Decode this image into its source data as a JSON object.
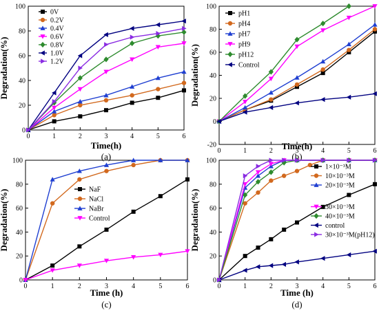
{
  "chart_data": [
    {
      "type": "line",
      "panel_label": "(a)",
      "xlabel": "Time(h)",
      "ylabel": "Degradation(%)",
      "xlim": [
        0,
        6
      ],
      "ylim": [
        0,
        100
      ],
      "xticks": [
        0,
        1,
        2,
        3,
        4,
        5,
        6
      ],
      "yticks": [
        0,
        20,
        40,
        60,
        80,
        100
      ],
      "legend_position": "top-left",
      "series": [
        {
          "name": "0V",
          "marker": "square",
          "color": "#000000",
          "x": [
            0,
            1,
            2,
            3,
            4,
            5,
            6
          ],
          "values": [
            0,
            7,
            11,
            16,
            22,
            26,
            32
          ]
        },
        {
          "name": "0.2V",
          "marker": "circle",
          "color": "#d2691e",
          "x": [
            0,
            1,
            2,
            3,
            4,
            5,
            6
          ],
          "values": [
            0,
            12,
            20,
            24,
            28,
            33,
            38
          ]
        },
        {
          "name": "0.4V",
          "marker": "triangle-up",
          "color": "#1f3fd1",
          "x": [
            0,
            1,
            2,
            3,
            4,
            5,
            6
          ],
          "values": [
            0,
            15,
            23,
            28,
            35,
            42,
            47
          ]
        },
        {
          "name": "0.6V",
          "marker": "triangle-down",
          "color": "#ff00ff",
          "x": [
            0,
            1,
            2,
            3,
            4,
            5,
            6
          ],
          "values": [
            0,
            18,
            33,
            47,
            57,
            67,
            70
          ]
        },
        {
          "name": "0.8V",
          "marker": "diamond",
          "color": "#2e8b2e",
          "x": [
            0,
            1,
            2,
            3,
            4,
            5,
            6
          ],
          "values": [
            0,
            22,
            42,
            57,
            70,
            76,
            79
          ]
        },
        {
          "name": "1.0V",
          "marker": "triangle-left",
          "color": "#000080",
          "x": [
            0,
            1,
            2,
            3,
            4,
            5,
            6
          ],
          "values": [
            0,
            30,
            60,
            77,
            82,
            85,
            88
          ]
        },
        {
          "name": "1.2V",
          "marker": "triangle-right",
          "color": "#8a2be2",
          "x": [
            0,
            1,
            2,
            3,
            4,
            5,
            6
          ],
          "values": [
            0,
            23,
            50,
            69,
            75,
            78,
            82
          ]
        }
      ]
    },
    {
      "type": "line",
      "panel_label": "(b)",
      "xlabel": "Time(h)",
      "ylabel": "Degradation(%)",
      "xlim": [
        0,
        6
      ],
      "ylim": [
        -20,
        100
      ],
      "xticks": [
        0,
        1,
        2,
        3,
        4,
        5,
        6
      ],
      "yticks": [
        -20,
        0,
        20,
        40,
        60,
        80,
        100
      ],
      "legend_position": "top-left",
      "series": [
        {
          "name": "pH1",
          "marker": "square",
          "color": "#000000",
          "x": [
            0,
            1,
            2,
            3,
            4,
            5,
            6
          ],
          "values": [
            0,
            10,
            18,
            30,
            42,
            60,
            78
          ]
        },
        {
          "name": "pH4",
          "marker": "circle",
          "color": "#d2691e",
          "x": [
            0,
            1,
            2,
            3,
            4,
            5,
            6
          ],
          "values": [
            0,
            10,
            19,
            32,
            45,
            62,
            80
          ]
        },
        {
          "name": "pH7",
          "marker": "triangle-up",
          "color": "#1f3fd1",
          "x": [
            0,
            1,
            2,
            3,
            4,
            5,
            6
          ],
          "values": [
            0,
            12,
            25,
            38,
            52,
            67,
            84
          ]
        },
        {
          "name": "pH9",
          "marker": "triangle-down",
          "color": "#ff00ff",
          "x": [
            0,
            1,
            2,
            3,
            4,
            5,
            6
          ],
          "values": [
            0,
            17,
            37,
            65,
            79,
            90,
            100
          ]
        },
        {
          "name": "pH12",
          "marker": "diamond",
          "color": "#2e8b2e",
          "x": [
            0,
            1,
            2,
            3,
            4,
            5
          ],
          "values": [
            0,
            22,
            43,
            71,
            85,
            100
          ]
        },
        {
          "name": "Control",
          "marker": "triangle-left",
          "color": "#000080",
          "x": [
            0,
            1,
            2,
            3,
            4,
            5,
            6
          ],
          "values": [
            0,
            8,
            12,
            16,
            19,
            21,
            24
          ]
        }
      ]
    },
    {
      "type": "line",
      "panel_label": "(c)",
      "xlabel": "Time (h)",
      "ylabel": "Degradation(%)",
      "xlim": [
        0,
        6
      ],
      "ylim": [
        0,
        100
      ],
      "xticks": [
        0,
        1,
        2,
        3,
        4,
        5,
        6
      ],
      "yticks": [
        0,
        20,
        40,
        60,
        80,
        100
      ],
      "legend_position": "center",
      "series": [
        {
          "name": "NaF",
          "marker": "square",
          "color": "#000000",
          "x": [
            0,
            1,
            2,
            3,
            4,
            5,
            6
          ],
          "values": [
            0,
            12,
            28,
            42,
            57,
            70,
            84
          ]
        },
        {
          "name": "NaCl",
          "marker": "circle",
          "color": "#d2691e",
          "x": [
            0,
            1,
            2,
            3,
            4,
            5,
            6
          ],
          "values": [
            0,
            64,
            84,
            91,
            96,
            100,
            100
          ]
        },
        {
          "name": "NaBr",
          "marker": "triangle-up",
          "color": "#1f3fd1",
          "x": [
            0,
            1,
            2,
            3,
            4,
            5,
            6
          ],
          "values": [
            0,
            84,
            91,
            96,
            100,
            100,
            100
          ]
        },
        {
          "name": "Control",
          "marker": "triangle-down",
          "color": "#ff00ff",
          "x": [
            0,
            1,
            2,
            3,
            4,
            5,
            6
          ],
          "values": [
            0,
            8,
            12,
            16,
            19,
            21,
            24
          ]
        }
      ]
    },
    {
      "type": "line",
      "panel_label": "(d)",
      "xlabel": "Time (h)",
      "ylabel": "Degradation(%)",
      "xlim": [
        0,
        6
      ],
      "ylim": [
        0,
        100
      ],
      "xticks": [
        0,
        1,
        2,
        3,
        4,
        5,
        6
      ],
      "yticks": [
        0,
        20,
        40,
        60,
        80,
        100
      ],
      "legend_position": "right",
      "series": [
        {
          "name": "1×10⁻³M",
          "marker": "square",
          "color": "#000000",
          "x": [
            0,
            1,
            1.5,
            2,
            2.5,
            3,
            4,
            5,
            6
          ],
          "values": [
            0,
            20,
            27,
            34,
            42,
            48,
            61,
            71,
            80
          ]
        },
        {
          "name": "10×10⁻³M",
          "marker": "circle",
          "color": "#d2691e",
          "x": [
            0,
            1,
            1.5,
            2,
            2.5,
            3,
            3.5,
            4,
            5,
            6
          ],
          "values": [
            0,
            64,
            73,
            83,
            87,
            91,
            96,
            100,
            100,
            100
          ]
        },
        {
          "name": "20×10⁻³M",
          "marker": "triangle-up",
          "color": "#1f3fd1",
          "x": [
            0,
            1,
            1.5,
            2,
            2.5,
            3,
            4,
            5,
            6
          ],
          "values": [
            0,
            77,
            87,
            95,
            100,
            100,
            100,
            100,
            100
          ]
        },
        {
          "name": "30×10⁻³M",
          "marker": "triangle-down",
          "color": "#ff00ff",
          "x": [
            0,
            1,
            1.5,
            2,
            2.5,
            3,
            4,
            5,
            6
          ],
          "values": [
            0,
            80,
            90,
            97,
            100,
            100,
            100,
            100,
            100
          ]
        },
        {
          "name": "40×10⁻³M",
          "marker": "diamond",
          "color": "#2e8b2e",
          "x": [
            0,
            1,
            1.5,
            2,
            2.5,
            3,
            4,
            5,
            6
          ],
          "values": [
            0,
            71,
            82,
            90,
            98,
            100,
            100,
            100,
            100
          ]
        },
        {
          "name": "control",
          "marker": "triangle-left",
          "color": "#000080",
          "x": [
            0,
            1,
            1.5,
            2,
            2.5,
            3,
            4,
            5,
            6
          ],
          "values": [
            0,
            8,
            11,
            12,
            13,
            15,
            18,
            21,
            24
          ]
        },
        {
          "name": "30×10⁻³M(pH12)",
          "marker": "triangle-right",
          "color": "#8a2be2",
          "x": [
            0,
            1,
            1.5,
            2,
            2.5,
            3,
            4,
            5,
            6
          ],
          "values": [
            0,
            87,
            95,
            100,
            100,
            100,
            100,
            100,
            100
          ]
        }
      ]
    }
  ]
}
